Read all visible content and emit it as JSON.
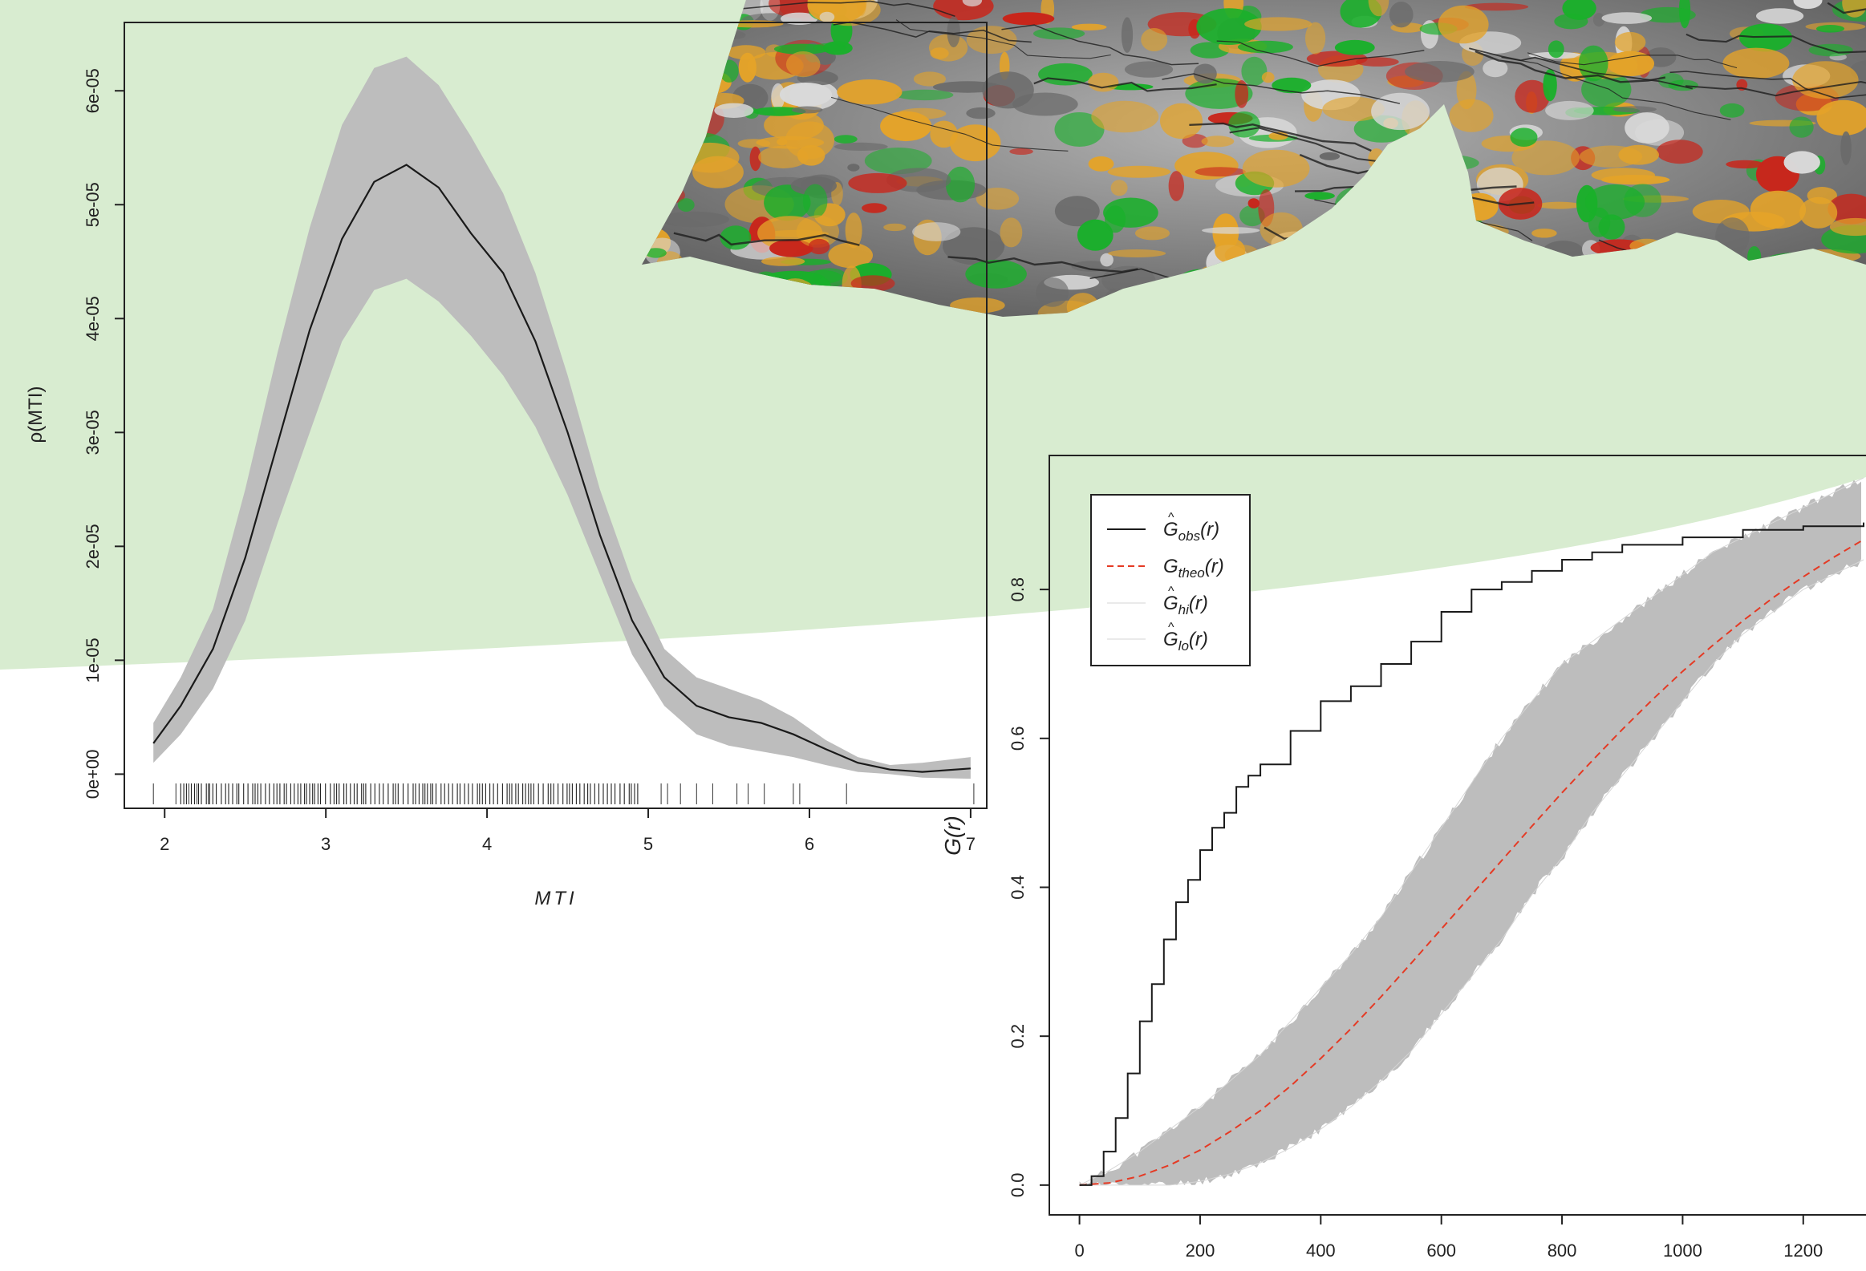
{
  "colors": {
    "background_band": "#d8ecd0",
    "ribbon": "#bdbdbd",
    "line": "#1a1a1a",
    "theo": "#e53a24",
    "terrain_base": "#8c8c8c",
    "terrain_green": "#19b02a",
    "terrain_orange": "#e4a329",
    "terrain_red": "#c8261b"
  },
  "decor": {
    "terrain_image": "3d-terrain-surface"
  },
  "chart_data": [
    {
      "type": "line",
      "xlabel": "MTI",
      "ylabel": "ρ(MTI)",
      "xlim": [
        1.75,
        7.1
      ],
      "ylim": [
        -3e-06,
        6.6e-05
      ],
      "xticks": [
        "2",
        "3",
        "4",
        "5",
        "6",
        "7"
      ],
      "xtick_values": [
        2,
        3,
        4,
        5,
        6,
        7
      ],
      "yticks": [
        "0e+00",
        "1e-05",
        "2e-05",
        "3e-05",
        "4e-05",
        "5e-05",
        "6e-05"
      ],
      "ytick_values": [
        0,
        1e-05,
        2e-05,
        3e-05,
        4e-05,
        5e-05,
        6e-05
      ],
      "x": [
        1.93,
        2.1,
        2.3,
        2.5,
        2.7,
        2.9,
        3.1,
        3.3,
        3.5,
        3.7,
        3.9,
        4.1,
        4.3,
        4.5,
        4.7,
        4.9,
        5.1,
        5.3,
        5.5,
        5.7,
        5.9,
        6.1,
        6.3,
        6.5,
        6.7,
        7.0
      ],
      "estimate": [
        2.7e-06,
        6e-06,
        1.1e-05,
        1.9e-05,
        2.9e-05,
        3.9e-05,
        4.7e-05,
        5.2e-05,
        5.35e-05,
        5.15e-05,
        4.75e-05,
        4.4e-05,
        3.8e-05,
        3e-05,
        2.1e-05,
        1.35e-05,
        8.5e-06,
        6e-06,
        5e-06,
        4.5e-06,
        3.5e-06,
        2.2e-06,
        1e-06,
        4e-07,
        2e-07,
        5e-07
      ],
      "upper": [
        4.5e-06,
        8.5e-06,
        1.45e-05,
        2.5e-05,
        3.7e-05,
        4.8e-05,
        5.7e-05,
        6.2e-05,
        6.3e-05,
        6.05e-05,
        5.6e-05,
        5.1e-05,
        4.4e-05,
        3.5e-05,
        2.5e-05,
        1.7e-05,
        1.1e-05,
        8.5e-06,
        7.5e-06,
        6.5e-06,
        5e-06,
        3e-06,
        1.5e-06,
        8e-07,
        1e-06,
        1.5e-06
      ],
      "lower": [
        1e-06,
        3.5e-06,
        7.5e-06,
        1.35e-05,
        2.2e-05,
        3e-05,
        3.8e-05,
        4.25e-05,
        4.35e-05,
        4.15e-05,
        3.85e-05,
        3.5e-05,
        3.05e-05,
        2.45e-05,
        1.75e-05,
        1.05e-05,
        6e-06,
        3.5e-06,
        2.5e-06,
        2e-06,
        1.5e-06,
        8e-07,
        2e-07,
        0,
        -3e-07,
        -4e-07
      ],
      "rug_dense_ranges": [
        [
          2.1,
          4.95
        ]
      ],
      "rug_sparse": [
        1.93,
        2.07,
        2.15,
        2.2,
        2.27,
        5.08,
        5.12,
        5.2,
        5.3,
        5.4,
        5.55,
        5.62,
        5.72,
        5.9,
        5.94,
        6.23,
        7.02
      ]
    },
    {
      "type": "line",
      "ylabel": "G(r)",
      "xlim": [
        -50,
        1320
      ],
      "ylim": [
        -0.04,
        0.98
      ],
      "xticks": [
        "0",
        "200",
        "400",
        "600",
        "800",
        "1000",
        "1200"
      ],
      "xtick_values": [
        0,
        200,
        400,
        600,
        800,
        1000,
        1200
      ],
      "yticks": [
        "0.0",
        "0.2",
        "0.4",
        "0.6",
        "0.8"
      ],
      "ytick_values": [
        0,
        0.2,
        0.4,
        0.6,
        0.8
      ],
      "legend_position": "top-left",
      "legend": [
        {
          "main": "G",
          "hat": "^",
          "sub": "obs",
          "tail": "(r)",
          "style": "solid-black"
        },
        {
          "main": "G",
          "hat": "",
          "sub": "theo",
          "tail": "(r)",
          "style": "dashed-red"
        },
        {
          "main": "G",
          "hat": "^",
          "sub": "hi",
          "tail": "(r)",
          "style": "light-gray"
        },
        {
          "main": "G",
          "hat": "^",
          "sub": "lo",
          "tail": "(r)",
          "style": "light-gray"
        }
      ],
      "series": [
        {
          "key": "obs",
          "x": [
            0,
            20,
            40,
            60,
            80,
            100,
            120,
            140,
            160,
            180,
            200,
            220,
            240,
            260,
            280,
            300,
            350,
            400,
            450,
            500,
            550,
            600,
            650,
            700,
            750,
            800,
            850,
            900,
            1000,
            1100,
            1200,
            1300
          ],
          "y": [
            0,
            0.012,
            0.045,
            0.09,
            0.15,
            0.22,
            0.27,
            0.33,
            0.38,
            0.41,
            0.45,
            0.48,
            0.5,
            0.535,
            0.55,
            0.565,
            0.61,
            0.65,
            0.67,
            0.7,
            0.73,
            0.77,
            0.8,
            0.81,
            0.825,
            0.84,
            0.85,
            0.86,
            0.87,
            0.88,
            0.885,
            0.89
          ]
        },
        {
          "key": "theo",
          "x": [
            0,
            50,
            100,
            150,
            200,
            250,
            300,
            350,
            400,
            450,
            500,
            550,
            600,
            650,
            700,
            750,
            800,
            850,
            900,
            950,
            1000,
            1050,
            1100,
            1150,
            1200,
            1250,
            1300
          ],
          "y": [
            0,
            0.003,
            0.012,
            0.027,
            0.047,
            0.072,
            0.1,
            0.133,
            0.17,
            0.21,
            0.253,
            0.298,
            0.344,
            0.39,
            0.436,
            0.482,
            0.527,
            0.57,
            0.612,
            0.652,
            0.69,
            0.725,
            0.758,
            0.789,
            0.817,
            0.843,
            0.867
          ]
        },
        {
          "key": "hi",
          "x": [
            0,
            50,
            100,
            150,
            200,
            250,
            300,
            350,
            400,
            450,
            500,
            550,
            600,
            650,
            700,
            750,
            800,
            850,
            900,
            950,
            1000,
            1050,
            1100,
            1150,
            1200,
            1250,
            1300
          ],
          "y": [
            0,
            0.02,
            0.045,
            0.075,
            0.105,
            0.14,
            0.175,
            0.22,
            0.265,
            0.31,
            0.36,
            0.42,
            0.48,
            0.54,
            0.6,
            0.65,
            0.7,
            0.73,
            0.76,
            0.79,
            0.82,
            0.85,
            0.87,
            0.89,
            0.91,
            0.93,
            0.95
          ]
        },
        {
          "key": "lo",
          "x": [
            0,
            50,
            100,
            150,
            200,
            250,
            300,
            350,
            400,
            450,
            500,
            550,
            600,
            650,
            700,
            750,
            800,
            850,
            900,
            950,
            1000,
            1050,
            1100,
            1150,
            1200,
            1250,
            1300
          ],
          "y": [
            0,
            0,
            0,
            0,
            0.005,
            0.015,
            0.03,
            0.05,
            0.075,
            0.105,
            0.14,
            0.18,
            0.23,
            0.28,
            0.33,
            0.39,
            0.44,
            0.5,
            0.55,
            0.6,
            0.65,
            0.7,
            0.74,
            0.77,
            0.8,
            0.82,
            0.84
          ]
        }
      ]
    }
  ]
}
